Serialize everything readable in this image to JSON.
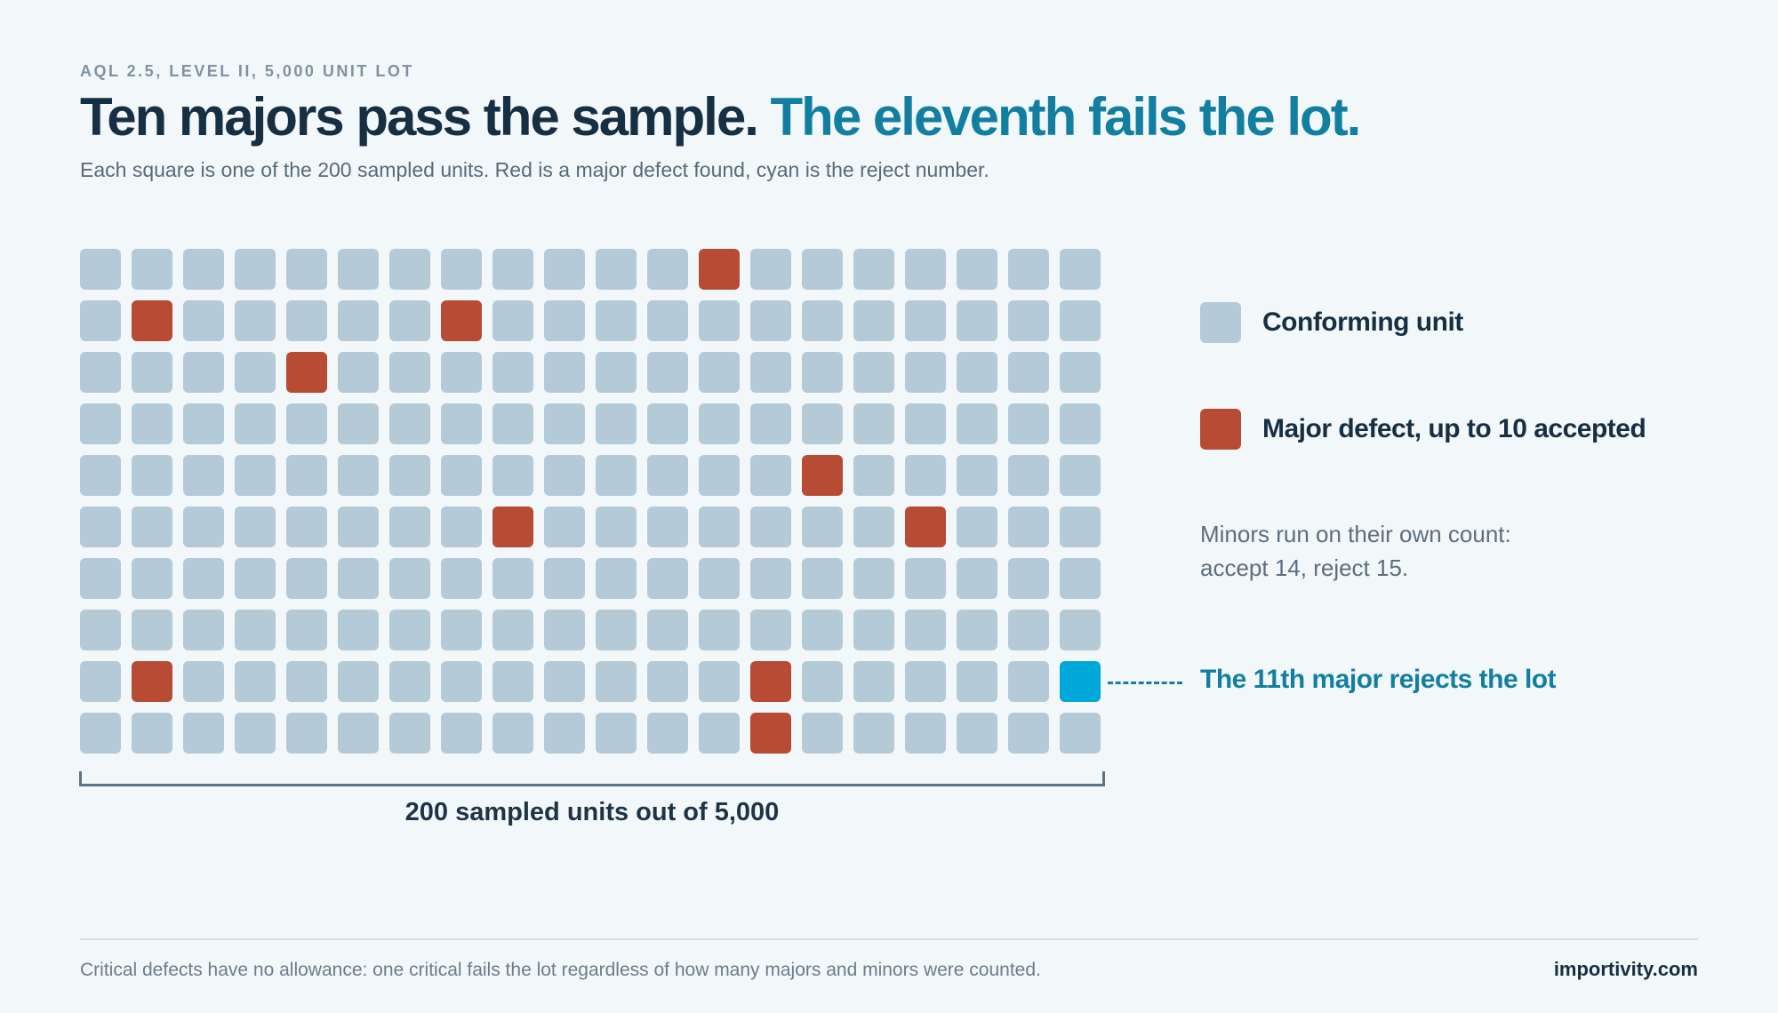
{
  "header": {
    "eyebrow": "AQL 2.5, LEVEL II, 5,000 UNIT LOT",
    "title_main": "Ten majors pass the sample.",
    "title_accent": "The eleventh fails the lot.",
    "subtitle": "Each square is one of the 200 sampled units. Red is a major defect found, cyan is the reject number."
  },
  "grid": {
    "rows": 10,
    "columns": 20,
    "major_cells": [
      [
        0,
        12
      ],
      [
        1,
        1
      ],
      [
        1,
        7
      ],
      [
        2,
        4
      ],
      [
        4,
        14
      ],
      [
        5,
        8
      ],
      [
        5,
        16
      ],
      [
        8,
        1
      ],
      [
        8,
        13
      ],
      [
        9,
        13
      ]
    ],
    "reject_cell": [
      8,
      19
    ],
    "sample_label": "200 sampled units out of 5,000"
  },
  "legend": {
    "conforming": "Conforming unit",
    "major": "Major defect, up to 10 accepted",
    "minor_note_line1": "Minors run on their own count:",
    "minor_note_line2": "accept 14, reject 15.",
    "reject_label": "The 11th major rejects the lot"
  },
  "colors": {
    "conforming": "#b4cad7",
    "major": "#b74b34",
    "reject": "#00a8da",
    "accent_text": "#127fa0"
  },
  "footer": {
    "note": "Critical defects have no allowance: one critical fails the lot regardless of how many majors and minors were counted.",
    "brand": "importivity.com"
  }
}
